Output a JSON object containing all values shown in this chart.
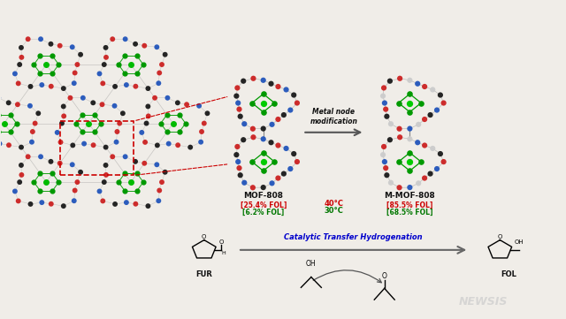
{
  "bg_color": "#f0ede8",
  "title": "",
  "mof808_label": "MOF-808",
  "mmof808_label": "M-MOF-808",
  "mof808_red": "[25.4% FOL]",
  "mof808_green": "[6.2% FOL]",
  "mmof808_red": "[85.5% FOL]",
  "mmof808_green": "[68.5% FOL]",
  "temp_red": "40°C",
  "temp_green": "30°C",
  "metal_node_text": "Metal node\nmodification",
  "cth_text": "Catalytic Transfer Hydrogenation",
  "fur_label": "FUR",
  "fol_label": "FOL",
  "newsis_text": "NEWSIS",
  "arrow_color": "#888888",
  "arrow_color2": "#444444",
  "text_blue": "#0000cc",
  "text_red": "#cc0000",
  "text_green": "#007700",
  "text_black": "#111111"
}
